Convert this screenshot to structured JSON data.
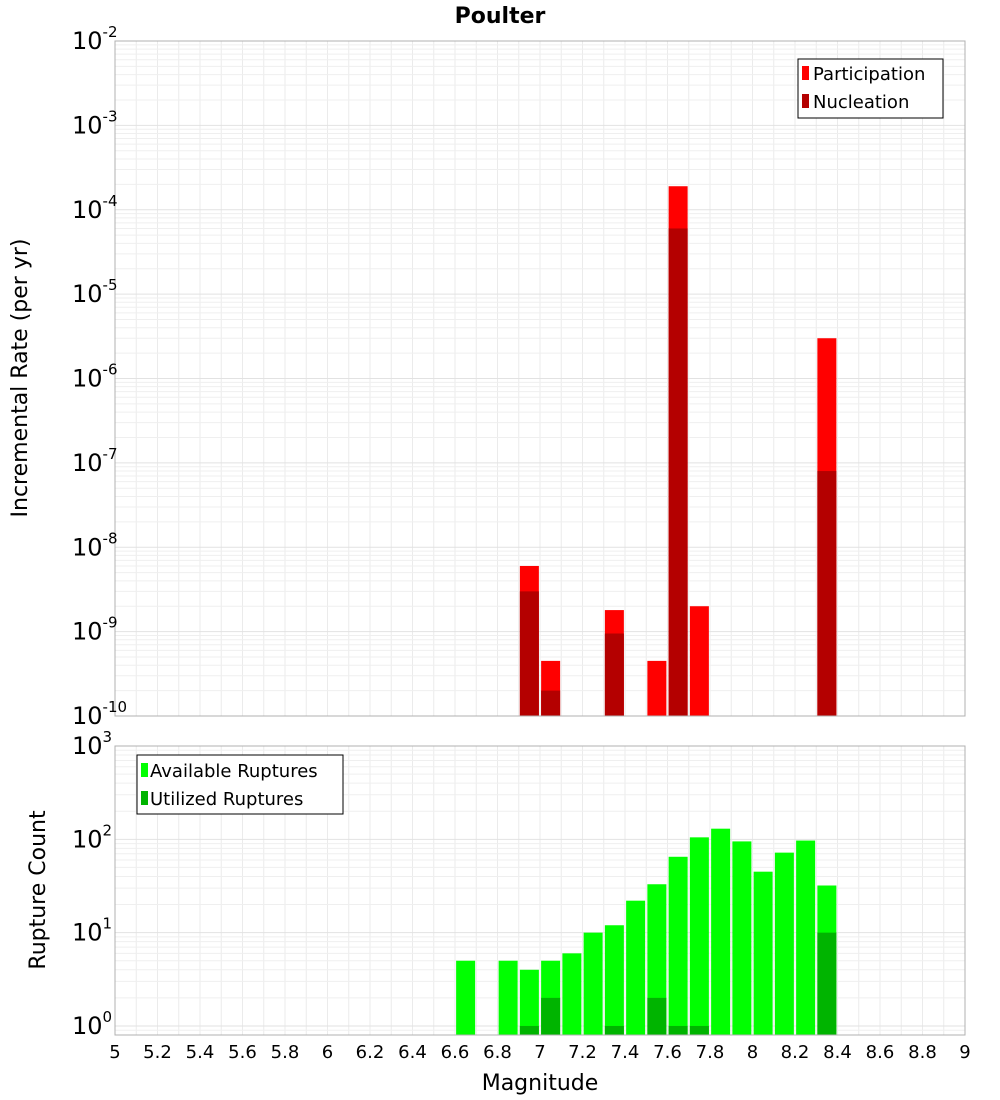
{
  "chart_data": [
    {
      "type": "bar",
      "title": "Poulter",
      "xlabel": "Magnitude",
      "ylabel": "Incremental Rate (per yr)",
      "y_scale": "log",
      "xlim": [
        5,
        9
      ],
      "ylim": [
        1e-10,
        0.01
      ],
      "x_ticks": [
        "5",
        "5.2",
        "5.4",
        "5.6",
        "5.8",
        "6",
        "6.2",
        "6.4",
        "6.6",
        "6.8",
        "7",
        "7.2",
        "7.4",
        "7.6",
        "7.8",
        "8",
        "8.2",
        "8.4",
        "8.6",
        "8.8",
        "9"
      ],
      "y_ticks": [
        {
          "base": "10",
          "exp": "-10"
        },
        {
          "base": "10",
          "exp": "-9"
        },
        {
          "base": "10",
          "exp": "-8"
        },
        {
          "base": "10",
          "exp": "-7"
        },
        {
          "base": "10",
          "exp": "-6"
        },
        {
          "base": "10",
          "exp": "-5"
        },
        {
          "base": "10",
          "exp": "-4"
        },
        {
          "base": "10",
          "exp": "-3"
        },
        {
          "base": "10",
          "exp": "-2"
        }
      ],
      "grid": true,
      "legend_position": "top-right",
      "series": [
        {
          "name": "Participation",
          "color": "#ff0000",
          "x": [
            6.95,
            7.05,
            7.35,
            7.55,
            7.65,
            7.75,
            8.35
          ],
          "values": [
            6e-09,
            4.5e-10,
            1.8e-09,
            4.5e-10,
            0.00019,
            2e-09,
            3e-06
          ]
        },
        {
          "name": "Nucleation",
          "color": "#b40000",
          "x": [
            6.95,
            7.05,
            7.35,
            7.65,
            8.35
          ],
          "values": [
            3e-09,
            2e-10,
            9.5e-10,
            6e-05,
            8e-08
          ]
        }
      ]
    },
    {
      "type": "bar",
      "xlabel": "Magnitude",
      "ylabel": "Rupture Count",
      "y_scale": "log",
      "xlim": [
        5,
        9
      ],
      "ylim": [
        0.8,
        1000
      ],
      "y_ticks": [
        {
          "base": "10",
          "exp": "0",
          "value": 1
        },
        {
          "base": "10",
          "exp": "1",
          "value": 10
        },
        {
          "base": "10",
          "exp": "2",
          "value": 100
        },
        {
          "base": "10",
          "exp": "3",
          "value": 1000
        }
      ],
      "grid": true,
      "legend_position": "top-left",
      "series": [
        {
          "name": "Available Ruptures",
          "color": "#00ff00",
          "x": [
            6.65,
            6.85,
            6.95,
            7.05,
            7.15,
            7.25,
            7.35,
            7.45,
            7.55,
            7.65,
            7.75,
            7.85,
            7.95,
            8.05,
            8.15,
            8.25,
            8.35
          ],
          "values": [
            5,
            5,
            4,
            5,
            6,
            10,
            12,
            22,
            33,
            65,
            105,
            130,
            95,
            45,
            72,
            97,
            32
          ]
        },
        {
          "name": "Utilized Ruptures",
          "color": "#00b400",
          "x": [
            6.95,
            7.05,
            7.35,
            7.55,
            7.65,
            7.75,
            8.35
          ],
          "values": [
            1,
            2,
            1,
            2,
            1,
            1,
            10
          ]
        }
      ]
    }
  ]
}
